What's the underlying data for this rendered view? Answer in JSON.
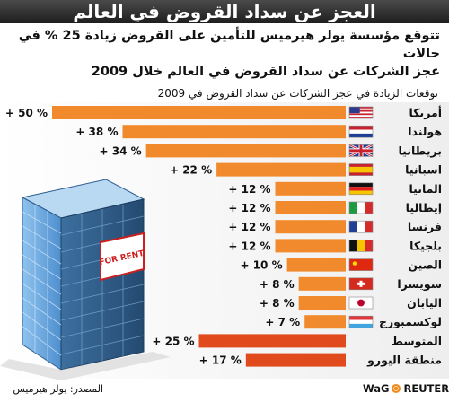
{
  "header": {
    "title": "العجز عن سداد القروض في العالم",
    "subtitle_line1": "تتوقع مؤسسة يولر هيرميس للتأمين على القروض زيادة 25 % في حالات",
    "subtitle_line2": "عجز الشركات عن سداد القروض في العالم خلال 2009"
  },
  "footer": {
    "source": "المصدر: يولر هيرميس",
    "brand_left": "WaG",
    "brand_right": "REUTERS"
  },
  "building": {
    "sign": "FOR RENT"
  },
  "chart_data": {
    "type": "bar",
    "orientation": "horizontal",
    "title": "توقعات الزيادة في عجز الشركات عن سداد القروض في 2009",
    "value_prefix": "+ ",
    "value_suffix": " %",
    "xlim": [
      0,
      50
    ],
    "grid": false,
    "legend": "none",
    "categories": [
      "أمريكا",
      "هولندا",
      "بريطانيا",
      "اسبانيا",
      "المانيا",
      "إيطاليا",
      "فرنسا",
      "بلجيكا",
      "الصين",
      "سويسرا",
      "اليابان",
      "لوكسمبورج",
      "المتوسط",
      "منطقة اليورو"
    ],
    "values": [
      50,
      38,
      34,
      22,
      12,
      12,
      12,
      12,
      10,
      8,
      8,
      7,
      25,
      17
    ],
    "bar_colors": [
      "#f08a2c",
      "#f08a2c",
      "#f08a2c",
      "#f08a2c",
      "#f08a2c",
      "#f08a2c",
      "#f08a2c",
      "#f08a2c",
      "#f08a2c",
      "#f08a2c",
      "#f08a2c",
      "#f08a2c",
      "#e04a1c",
      "#e04a1c"
    ],
    "flags": [
      "us-flag-icon",
      "netherlands-flag-icon",
      "uk-flag-icon",
      "spain-flag-icon",
      "germany-flag-icon",
      "italy-flag-icon",
      "france-flag-icon",
      "belgium-flag-icon",
      "china-flag-icon",
      "switzerland-flag-icon",
      "japan-flag-icon",
      "luxembourg-flag-icon",
      "",
      ""
    ]
  }
}
